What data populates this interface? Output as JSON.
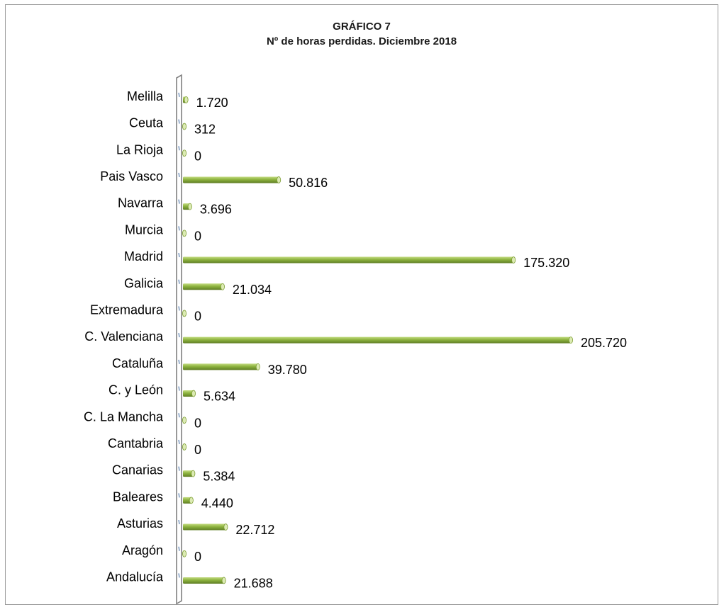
{
  "chart_data": {
    "type": "bar",
    "orientation": "horizontal",
    "title": "GRÁFICO 7",
    "subtitle": "Nº de horas perdidas. Diciembre 2018",
    "categories": [
      "Andalucía",
      "Aragón",
      "Asturias",
      "Baleares",
      "Canarias",
      "Cantabria",
      "C. La Mancha",
      "C. y León",
      "Cataluña",
      "C. Valenciana",
      "Extremadura",
      "Galicia",
      "Madrid",
      "Murcia",
      "Navarra",
      "Pais Vasco",
      "La Rioja",
      "Ceuta",
      "Melilla"
    ],
    "values": [
      21688,
      0,
      22712,
      4440,
      5384,
      0,
      0,
      5634,
      39780,
      205720,
      0,
      21034,
      175320,
      0,
      3696,
      50816,
      0,
      312,
      1720
    ],
    "value_labels": [
      "21.688",
      "0",
      "22.712",
      "4.440",
      "5.384",
      "0",
      "0",
      "5.634",
      "39.780",
      "205.720",
      "0",
      "21.034",
      "175.320",
      "0",
      "3.696",
      "50.816",
      "0",
      "312",
      "1.720"
    ],
    "xlim": [
      0,
      210000
    ],
    "grid": false,
    "legend": "none",
    "bar_color": "#8db33f",
    "bar_highlight": "#c4dc82",
    "bar_shadow": "#5f7d25",
    "axis_color": "#808080"
  }
}
